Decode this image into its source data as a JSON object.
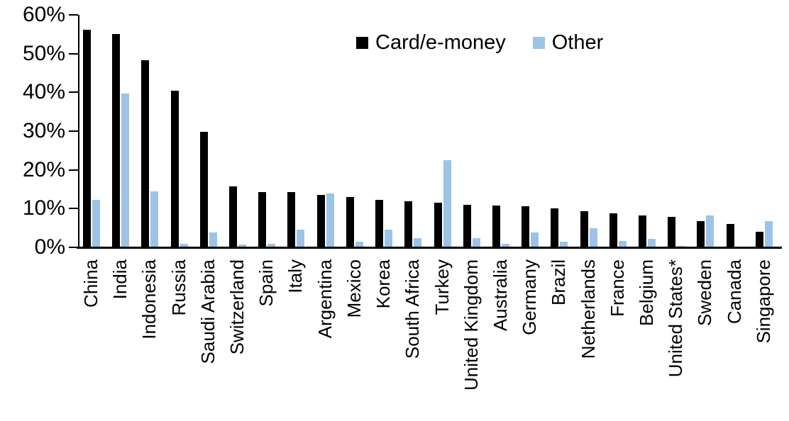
{
  "chart_data": {
    "type": "bar",
    "title": "",
    "xlabel": "",
    "ylabel": "",
    "categories": [
      "China",
      "India",
      "Indonesia",
      "Russia",
      "Saudi Arabia",
      "Switzerland",
      "Spain",
      "Italy",
      "Argentina",
      "Mexico",
      "Korea",
      "South Africa",
      "Turkey",
      "United Kingdom",
      "Australia",
      "Germany",
      "Brazil",
      "Netherlands",
      "France",
      "Belgium",
      "United States*",
      "Sweden",
      "Canada",
      "Singapore"
    ],
    "series": [
      {
        "name": "Card/e-money",
        "color": "#000000",
        "values": [
          56.2,
          55.0,
          48.3,
          40.5,
          29.9,
          15.7,
          14.2,
          14.2,
          13.5,
          13.0,
          12.3,
          11.8,
          11.6,
          11.0,
          10.8,
          10.6,
          10.1,
          9.3,
          8.7,
          8.3,
          7.9,
          6.7,
          6.1,
          4.0
        ]
      },
      {
        "name": "Other",
        "color": "#9DC3E6",
        "values": [
          12.3,
          39.7,
          14.4,
          1.0,
          3.9,
          0.8,
          1.0,
          4.6,
          13.9,
          1.5,
          4.6,
          2.3,
          22.5,
          2.3,
          1.0,
          3.9,
          1.4,
          4.9,
          1.7,
          2.2,
          0.3,
          8.2,
          0.0,
          6.8
        ]
      }
    ],
    "ylim": [
      0,
      60
    ],
    "y_tick_labels": [
      "0%",
      "10%",
      "20%",
      "30%",
      "40%",
      "50%",
      "60%"
    ],
    "y_tick_values": [
      0,
      10,
      20,
      30,
      40,
      50,
      60
    ],
    "grid": "off",
    "legend_position": "top-center"
  },
  "colors": {
    "card_series": "#000000",
    "other_series": "#9DC3E6",
    "axis": "#000000",
    "background": "#FFFFFF",
    "text": "#000000"
  }
}
